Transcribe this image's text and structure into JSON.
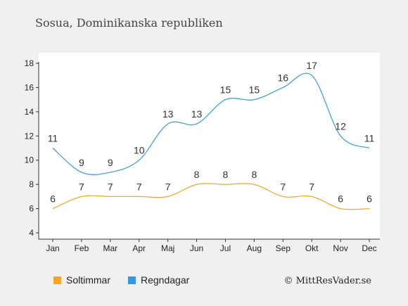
{
  "chart_data": {
    "type": "line",
    "title": "Sosua, Dominikanska republiken",
    "categories": [
      "Jan",
      "Feb",
      "Mar",
      "Apr",
      "Maj",
      "Jun",
      "Jul",
      "Aug",
      "Sep",
      "Okt",
      "Nov",
      "Dec"
    ],
    "y_ticks": [
      "4",
      "6",
      "8",
      "10",
      "12",
      "14",
      "16",
      "18"
    ],
    "ylim": [
      4,
      18
    ],
    "grid": false,
    "legend_position": "bottom-left",
    "series": [
      {
        "name": "Soltimmar",
        "color": "#f5a623",
        "values": [
          6,
          7,
          7,
          7,
          7,
          8,
          8,
          8,
          7,
          7,
          6,
          6
        ]
      },
      {
        "name": "Regndagar",
        "color": "#3399e6",
        "values": [
          11,
          9,
          9,
          10,
          13,
          13,
          15,
          15,
          16,
          17,
          12,
          11
        ]
      }
    ],
    "credit": "© MittResVader.se"
  }
}
